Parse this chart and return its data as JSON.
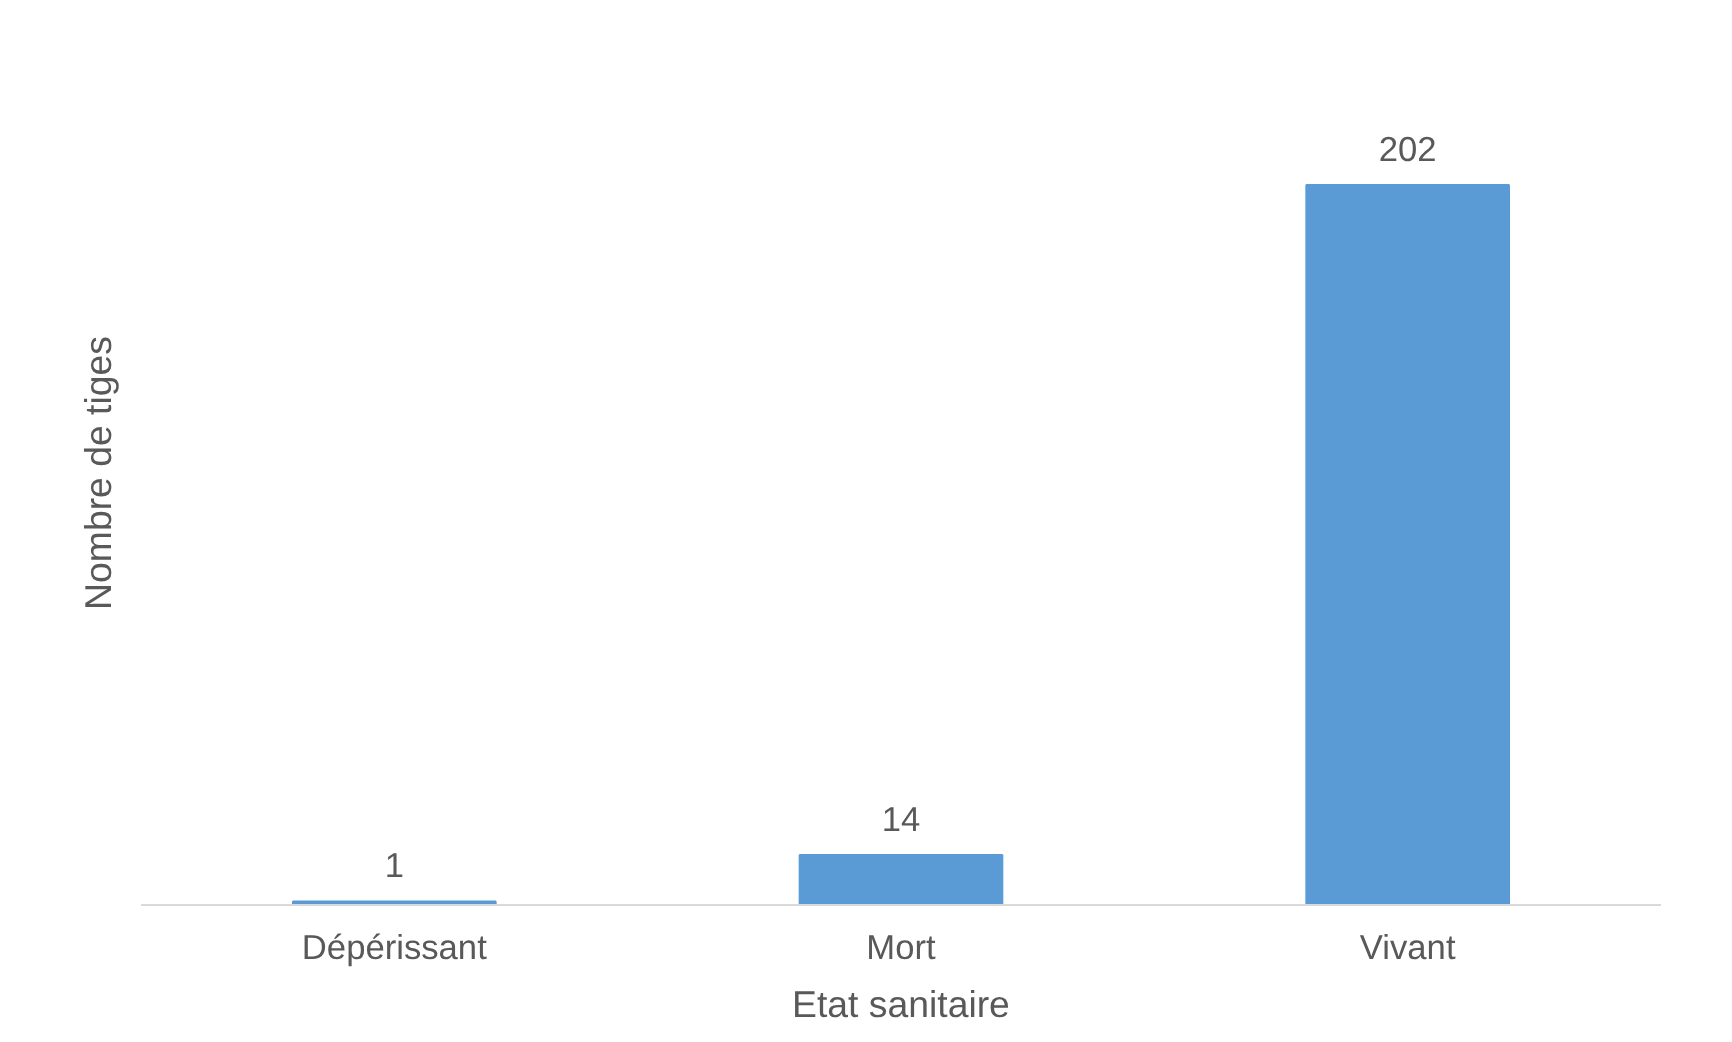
{
  "chart_data": {
    "type": "bar",
    "xlabel": "Etat sanitaire",
    "ylabel": "Nombre de tiges",
    "categories": [
      "Dépérissant",
      "Mort",
      "Vivant"
    ],
    "values": [
      1,
      14,
      202
    ],
    "color": "#5b9bd5",
    "data_labels": true
  }
}
